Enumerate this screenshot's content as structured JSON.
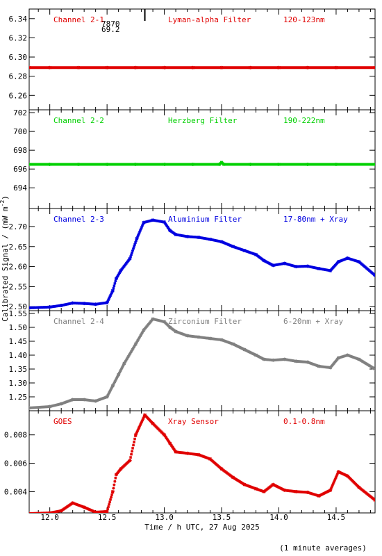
{
  "figure": {
    "ylabel": "Calibrated Signal / (mW m",
    "ylabel_sup": "-2",
    "ylabel_close": ")",
    "xlabel": "Time / h UTC, 27 Aug 2025",
    "footnote": "(1 minute averages)",
    "x_ticks": [
      "12.0",
      "12.5",
      "13.0",
      "13.5",
      "14.0",
      "14.5"
    ],
    "xlim": [
      11.82,
      14.84
    ],
    "marker_annotation": {
      "x": 12.83,
      "line1": "7870",
      "line2": "69.2"
    }
  },
  "chart_data": [
    {
      "type": "scatter",
      "color": "#e00000",
      "label_left": "Channel 2-1",
      "label_mid": "Lyman-alpha Filter",
      "label_right": "120-123nm",
      "ylim": [
        6.245,
        6.35
      ],
      "yticks": [
        "6.34",
        "6.32",
        "6.30",
        "6.28",
        "6.26"
      ],
      "ytick_values": [
        6.34,
        6.32,
        6.3,
        6.28,
        6.26
      ],
      "series": [
        {
          "x": [
            11.82,
            12.0,
            12.25,
            12.5,
            12.75,
            13.0,
            13.25,
            13.5,
            13.75,
            14.0,
            14.25,
            14.5,
            14.84
          ],
          "values": [
            6.289,
            6.289,
            6.289,
            6.289,
            6.289,
            6.289,
            6.289,
            6.289,
            6.289,
            6.289,
            6.289,
            6.289,
            6.289
          ]
        }
      ]
    },
    {
      "type": "scatter",
      "color": "#00d000",
      "label_left": "Channel 2-2",
      "label_mid": "Herzberg Filter",
      "label_right": "190-222nm",
      "ylim": [
        691.8,
        702.3
      ],
      "yticks": [
        "702",
        "700",
        "698",
        "696",
        "694"
      ],
      "ytick_values": [
        702,
        700,
        698,
        696,
        694
      ],
      "series": [
        {
          "x": [
            11.82,
            12.0,
            12.25,
            12.5,
            12.75,
            13.0,
            13.25,
            13.48,
            13.5,
            13.52,
            13.75,
            14.0,
            14.25,
            14.5,
            14.84
          ],
          "values": [
            696.5,
            696.5,
            696.5,
            696.5,
            696.5,
            696.5,
            696.5,
            696.5,
            696.7,
            696.5,
            696.5,
            696.5,
            696.5,
            696.5,
            696.5
          ]
        }
      ]
    },
    {
      "type": "scatter",
      "color": "#0000e0",
      "label_left": "Channel 2-3",
      "label_mid": "Aluminium Filter",
      "label_right": "17-80nm + Xray",
      "ylim": [
        2.49,
        2.745
      ],
      "yticks": [
        "2.70",
        "2.65",
        "2.60",
        "2.55",
        "2.50"
      ],
      "ytick_values": [
        2.7,
        2.65,
        2.6,
        2.55,
        2.5
      ],
      "series": [
        {
          "x": [
            11.82,
            12.0,
            12.1,
            12.2,
            12.3,
            12.4,
            12.5,
            12.55,
            12.58,
            12.62,
            12.7,
            12.76,
            12.82,
            12.9,
            13.0,
            13.05,
            13.1,
            13.2,
            13.3,
            13.4,
            13.5,
            13.6,
            13.7,
            13.8,
            13.87,
            13.95,
            14.05,
            14.15,
            14.25,
            14.35,
            14.45,
            14.52,
            14.6,
            14.7,
            14.84
          ],
          "values": [
            2.497,
            2.499,
            2.503,
            2.509,
            2.508,
            2.506,
            2.51,
            2.54,
            2.57,
            2.59,
            2.62,
            2.67,
            2.71,
            2.716,
            2.711,
            2.69,
            2.68,
            2.675,
            2.673,
            2.668,
            2.662,
            2.65,
            2.64,
            2.63,
            2.615,
            2.603,
            2.608,
            2.6,
            2.601,
            2.595,
            2.59,
            2.612,
            2.621,
            2.612,
            2.578
          ]
        }
      ]
    },
    {
      "type": "scatter",
      "color": "#808080",
      "label_left": "Channel 2-4",
      "label_mid": "Zirconium Filter",
      "label_right": "6-20nm + Xray",
      "ylim": [
        1.2,
        1.56
      ],
      "yticks": [
        "1.55",
        "1.50",
        "1.45",
        "1.40",
        "1.35",
        "1.30",
        "1.25"
      ],
      "ytick_values": [
        1.55,
        1.5,
        1.45,
        1.4,
        1.35,
        1.3,
        1.25
      ],
      "series": [
        {
          "x": [
            11.82,
            12.0,
            12.1,
            12.2,
            12.3,
            12.4,
            12.5,
            12.55,
            12.6,
            12.65,
            12.75,
            12.82,
            12.9,
            13.0,
            13.05,
            13.1,
            13.2,
            13.3,
            13.4,
            13.5,
            13.6,
            13.7,
            13.8,
            13.87,
            13.95,
            14.05,
            14.15,
            14.25,
            14.35,
            14.45,
            14.52,
            14.6,
            14.7,
            14.84
          ],
          "values": [
            1.21,
            1.215,
            1.225,
            1.24,
            1.24,
            1.235,
            1.25,
            1.29,
            1.33,
            1.37,
            1.44,
            1.49,
            1.53,
            1.52,
            1.5,
            1.485,
            1.47,
            1.465,
            1.46,
            1.455,
            1.44,
            1.42,
            1.4,
            1.385,
            1.382,
            1.385,
            1.378,
            1.375,
            1.36,
            1.355,
            1.39,
            1.4,
            1.385,
            1.35
          ]
        }
      ]
    },
    {
      "type": "scatter",
      "color": "#e00000",
      "label_left": "GOES",
      "label_mid": "Xray Sensor",
      "label_right": "0.1-0.8nm",
      "ylim": [
        0.0025,
        0.0097
      ],
      "yticks": [
        "0.008",
        "0.006",
        "0.004"
      ],
      "ytick_values": [
        0.008,
        0.006,
        0.004
      ],
      "series": [
        {
          "x": [
            11.82,
            12.0,
            12.1,
            12.2,
            12.3,
            12.4,
            12.5,
            12.55,
            12.58,
            12.62,
            12.7,
            12.75,
            12.83,
            12.9,
            13.0,
            13.05,
            13.1,
            13.2,
            13.3,
            13.4,
            13.5,
            13.6,
            13.7,
            13.8,
            13.87,
            13.95,
            14.05,
            14.15,
            14.25,
            14.35,
            14.45,
            14.52,
            14.6,
            14.7,
            14.84
          ],
          "values": [
            0.00245,
            0.0025,
            0.00265,
            0.0032,
            0.0029,
            0.00255,
            0.0026,
            0.004,
            0.0052,
            0.0056,
            0.0062,
            0.008,
            0.0094,
            0.0088,
            0.008,
            0.0074,
            0.0068,
            0.0067,
            0.0066,
            0.0063,
            0.0056,
            0.005,
            0.0045,
            0.0042,
            0.004,
            0.0045,
            0.0041,
            0.004,
            0.00395,
            0.0037,
            0.0041,
            0.0054,
            0.0051,
            0.0043,
            0.0034
          ]
        }
      ]
    }
  ]
}
